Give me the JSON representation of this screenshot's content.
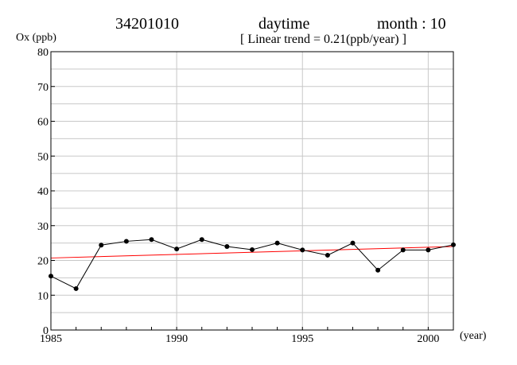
{
  "header": {
    "station": "34201010",
    "period": "daytime",
    "month_label": "month : 10",
    "trend_label": "[ Linear trend = 0.21(ppb/year) ]"
  },
  "chart_data": {
    "type": "line",
    "title": "",
    "ylabel": "Ox (ppb)",
    "xlabel": "(year)",
    "xlim": [
      1985,
      2001
    ],
    "ylim": [
      0,
      80
    ],
    "xticks": [
      1985,
      1990,
      1995,
      2000
    ],
    "yticks": [
      0,
      10,
      20,
      30,
      40,
      50,
      60,
      70,
      80
    ],
    "grid": true,
    "series": [
      {
        "x": [
          1985,
          1986,
          1987,
          1988,
          1989,
          1990,
          1991,
          1992,
          1993,
          1994,
          1995,
          1996,
          1997,
          1998,
          1999,
          2000,
          2001
        ],
        "values": [
          15.5,
          11.9,
          24.4,
          25.5,
          26.0,
          23.3,
          26.0,
          24.0,
          23.1,
          25.0,
          23.0,
          21.5,
          25.0,
          17.2,
          23.0,
          23.0,
          24.5
        ],
        "color": "#000000"
      }
    ],
    "trend": {
      "slope": 0.21,
      "start": [
        1985,
        20.7
      ],
      "end": [
        2001,
        24.0
      ],
      "color": "#ff0000"
    }
  }
}
